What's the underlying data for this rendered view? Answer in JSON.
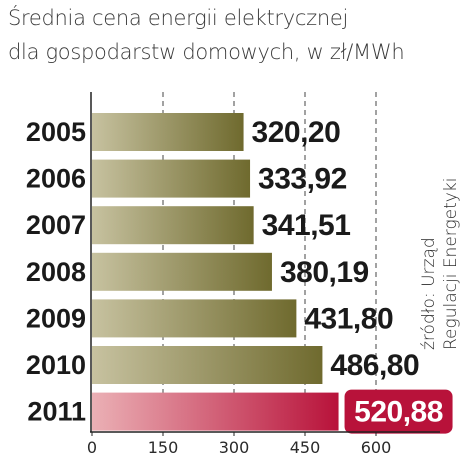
{
  "chart_data": {
    "type": "bar",
    "orientation": "horizontal",
    "title_lines": [
      "Średnia cena energii elektrycznej",
      "dla gospodarstw domowych, w zł/MWh"
    ],
    "source_lines": [
      "źródło: Urząd",
      "Regulacji Energetyki"
    ],
    "categories": [
      "2005",
      "2006",
      "2007",
      "2008",
      "2009",
      "2010",
      "2011"
    ],
    "values": [
      320.2,
      333.92,
      341.51,
      380.19,
      431.8,
      486.8,
      520.88
    ],
    "value_labels": [
      "320,20",
      "333,92",
      "341,51",
      "380,19",
      "431,80",
      "486,80",
      "520,88"
    ],
    "highlighted_index": 6,
    "xlim": [
      0,
      750
    ],
    "xticks": [
      0,
      150,
      300,
      450,
      600
    ],
    "xtick_labels": [
      "0",
      "150",
      "300",
      "450",
      "600"
    ],
    "grid": "dashed vertical lines at ticks",
    "colors": {
      "bar_light": "#c7c2a0",
      "bar_dark": "#6f6a2e",
      "highlight_light": "#ebb0b5",
      "highlight_dark": "#b8123a",
      "highlight_label_bg": "#b8123a",
      "highlight_label_text": "#ffffff",
      "label_text": "#1a1a1a",
      "year_text": "#1a1a1a",
      "grid": "#444444"
    }
  }
}
